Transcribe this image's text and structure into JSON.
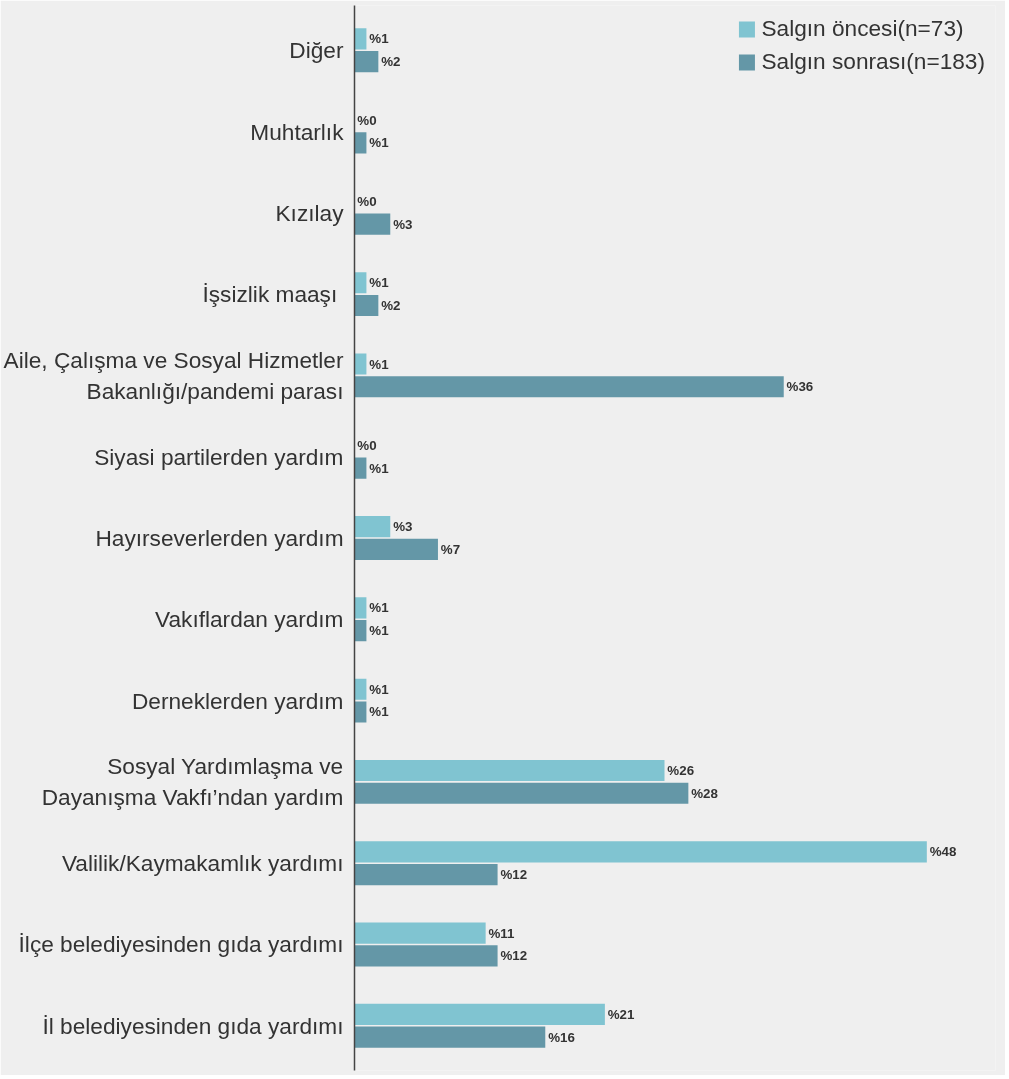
{
  "chart_data": {
    "type": "bar",
    "orientation": "horizontal",
    "categories": [
      "Diğer",
      "Muhtarlık",
      "Kızılay",
      "İşsizlik  maaşı",
      "Aile, Çalışma ve Sosyal Hizmetler\nBakanlığı/pandemi parası",
      "Siyasi partilerden yardım",
      "Hayırseverlerden yardım",
      "Vakıflardan yardım",
      "Derneklerden yardım",
      "Sosyal Yardımlaşma ve\nDayanışma Vakfı’ndan yardım",
      "Valilik/Kaymakamlık yardımı",
      "İlçe belediyesinden gıda yardımı",
      "İl belediyesinden gıda yardımı"
    ],
    "series": [
      {
        "name": "Salgın öncesi(n=73)",
        "color": "#80c4d1",
        "values": [
          1,
          0,
          0,
          1,
          1,
          0,
          3,
          1,
          1,
          26,
          48,
          11,
          21
        ],
        "value_labels": [
          "%1",
          "%0",
          "%0",
          "%1",
          "%1",
          "%0",
          "%3",
          "%1",
          "%1",
          "%26",
          "%48",
          "%11",
          "%21"
        ]
      },
      {
        "name": "Salgın sonrası(n=183)",
        "color": "#6497a7",
        "values": [
          2,
          1,
          3,
          2,
          36,
          1,
          7,
          1,
          1,
          28,
          12,
          12,
          16
        ],
        "value_labels": [
          "%2",
          "%1",
          "%3",
          "%2",
          "%36",
          "%1",
          "%7",
          "%1",
          "%1",
          "%28",
          "%12",
          "%12",
          "%16"
        ]
      }
    ],
    "legend": "top right",
    "grid": false
  }
}
